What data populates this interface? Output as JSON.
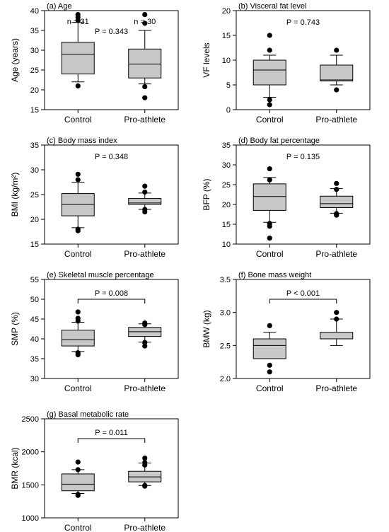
{
  "chart_data": [
    {
      "type": "box",
      "title": "(a) Age",
      "ylabel": "Age (years)",
      "ylim": [
        15,
        40
      ],
      "yticks": [
        15,
        20,
        25,
        30,
        35,
        40
      ],
      "categories": [
        "Control",
        "Pro-athlete"
      ],
      "boxes": [
        {
          "q1": 24,
          "median": 29,
          "q3": 32,
          "whisker_low": 22,
          "whisker_high": 37,
          "outliers": [
            21,
            37.5,
            38.3,
            39
          ]
        },
        {
          "q1": 23,
          "median": 26.5,
          "q3": 30.3,
          "whisker_low": 21.5,
          "whisker_high": 35,
          "outliers": [
            20.8,
            18,
            36.8,
            39
          ]
        }
      ],
      "counts": [
        "n = 31",
        "n = 30"
      ],
      "p_text": "P = 0.343",
      "bracket": false
    },
    {
      "type": "box",
      "title": "(b) Visceral fat level",
      "ylabel": "VF levels",
      "ylim": [
        0,
        20
      ],
      "yticks": [
        0,
        5,
        10,
        15,
        20
      ],
      "categories": [
        "Control",
        "Pro-athlete"
      ],
      "boxes": [
        {
          "q1": 5,
          "median": 8,
          "q3": 10,
          "whisker_low": 2.5,
          "whisker_high": 11,
          "outliers": [
            2,
            1,
            12,
            15
          ]
        },
        {
          "q1": 5.8,
          "median": 6,
          "q3": 9,
          "whisker_low": 5,
          "whisker_high": 11,
          "outliers": [
            4,
            12
          ]
        }
      ],
      "p_text": "P = 0.743",
      "bracket": false
    },
    {
      "type": "box",
      "title": "(c) Body mass index",
      "ylabel": "BMI (kg/m²)",
      "ylim": [
        15,
        35
      ],
      "yticks": [
        15,
        20,
        25,
        30,
        35
      ],
      "categories": [
        "Control",
        "Pro-athlete"
      ],
      "boxes": [
        {
          "q1": 20.7,
          "median": 23,
          "q3": 25.2,
          "whisker_low": 18.3,
          "whisker_high": 27.5,
          "outliers": [
            18,
            17.7,
            28,
            29.1
          ]
        },
        {
          "q1": 23,
          "median": 23.3,
          "q3": 24.2,
          "whisker_low": 22,
          "whisker_high": 25.3,
          "outliers": [
            22,
            21.5,
            25.5,
            26.7
          ]
        }
      ],
      "p_text": "P = 0.348",
      "bracket": false
    },
    {
      "type": "box",
      "title": "(d) Body fat percentage",
      "ylabel": "BFP (%)",
      "ylim": [
        10,
        35
      ],
      "yticks": [
        10,
        15,
        20,
        25,
        30,
        35
      ],
      "categories": [
        "Control",
        "Pro-athlete"
      ],
      "boxes": [
        {
          "q1": 18.5,
          "median": 22,
          "q3": 25.2,
          "whisker_low": 15.5,
          "whisker_high": 26.8,
          "outliers": [
            15.2,
            14.5,
            11.5,
            26.2,
            29
          ]
        },
        {
          "q1": 19.2,
          "median": 20.2,
          "q3": 22.1,
          "whisker_low": 17.8,
          "whisker_high": 24,
          "outliers": [
            17.7,
            17.3,
            23.8,
            25.3
          ]
        }
      ],
      "p_text": "P = 0.135",
      "bracket": false
    },
    {
      "type": "box",
      "title": "(e) Skeletal muscle percentage",
      "ylabel": "SMP (%)",
      "ylim": [
        30,
        55
      ],
      "yticks": [
        30,
        35,
        40,
        45,
        50,
        55
      ],
      "categories": [
        "Control",
        "Pro-athlete"
      ],
      "boxes": [
        {
          "q1": 38.2,
          "median": 39.8,
          "q3": 42.2,
          "whisker_low": 36.8,
          "whisker_high": 44.2,
          "outliers": [
            36.5,
            36,
            44.5,
            45.2,
            46.8
          ]
        },
        {
          "q1": 40.6,
          "median": 41.8,
          "q3": 42.9,
          "whisker_low": 39.2,
          "whisker_high": 43.8,
          "outliers": [
            39.1,
            38.2,
            43.6,
            44
          ]
        }
      ],
      "p_text": "P = 0.008",
      "bracket": true
    },
    {
      "type": "box",
      "title": "(f) Bone mass weight",
      "ylabel": "BMW (kg)",
      "ylim": [
        2.0,
        3.5
      ],
      "yticks": [
        2.0,
        2.5,
        3.0,
        3.5
      ],
      "ytick_labels": [
        "2.0",
        "2.5",
        "3.0",
        "3.5"
      ],
      "categories": [
        "Control",
        "Pro-athlete"
      ],
      "boxes": [
        {
          "q1": 2.3,
          "median": 2.5,
          "q3": 2.6,
          "whisker_low": 2.3,
          "whisker_high": 2.7,
          "outliers": [
            2.2,
            2.1,
            2.8
          ]
        },
        {
          "q1": 2.6,
          "median": 2.6,
          "q3": 2.7,
          "whisker_low": 2.5,
          "whisker_high": 2.9,
          "outliers": [
            2.9,
            3.0
          ]
        }
      ],
      "p_text": "P < 0.001",
      "bracket": true
    },
    {
      "type": "box",
      "title": "(g) Basal metabolic rate",
      "ylabel": "BMR (kcal)",
      "ylim": [
        1000,
        2500
      ],
      "yticks": [
        1000,
        1500,
        2000,
        2500
      ],
      "categories": [
        "Control",
        "Pro-athlete"
      ],
      "boxes": [
        {
          "q1": 1410,
          "median": 1510,
          "q3": 1665,
          "whisker_low": 1370,
          "whisker_high": 1730,
          "outliers": [
            1340,
            1355,
            1730,
            1845
          ]
        },
        {
          "q1": 1545,
          "median": 1620,
          "q3": 1705,
          "whisker_low": 1490,
          "whisker_high": 1830,
          "outliers": [
            1480,
            1490,
            1800,
            1840,
            1905
          ]
        }
      ],
      "p_text": "P = 0.011",
      "bracket": true
    }
  ]
}
